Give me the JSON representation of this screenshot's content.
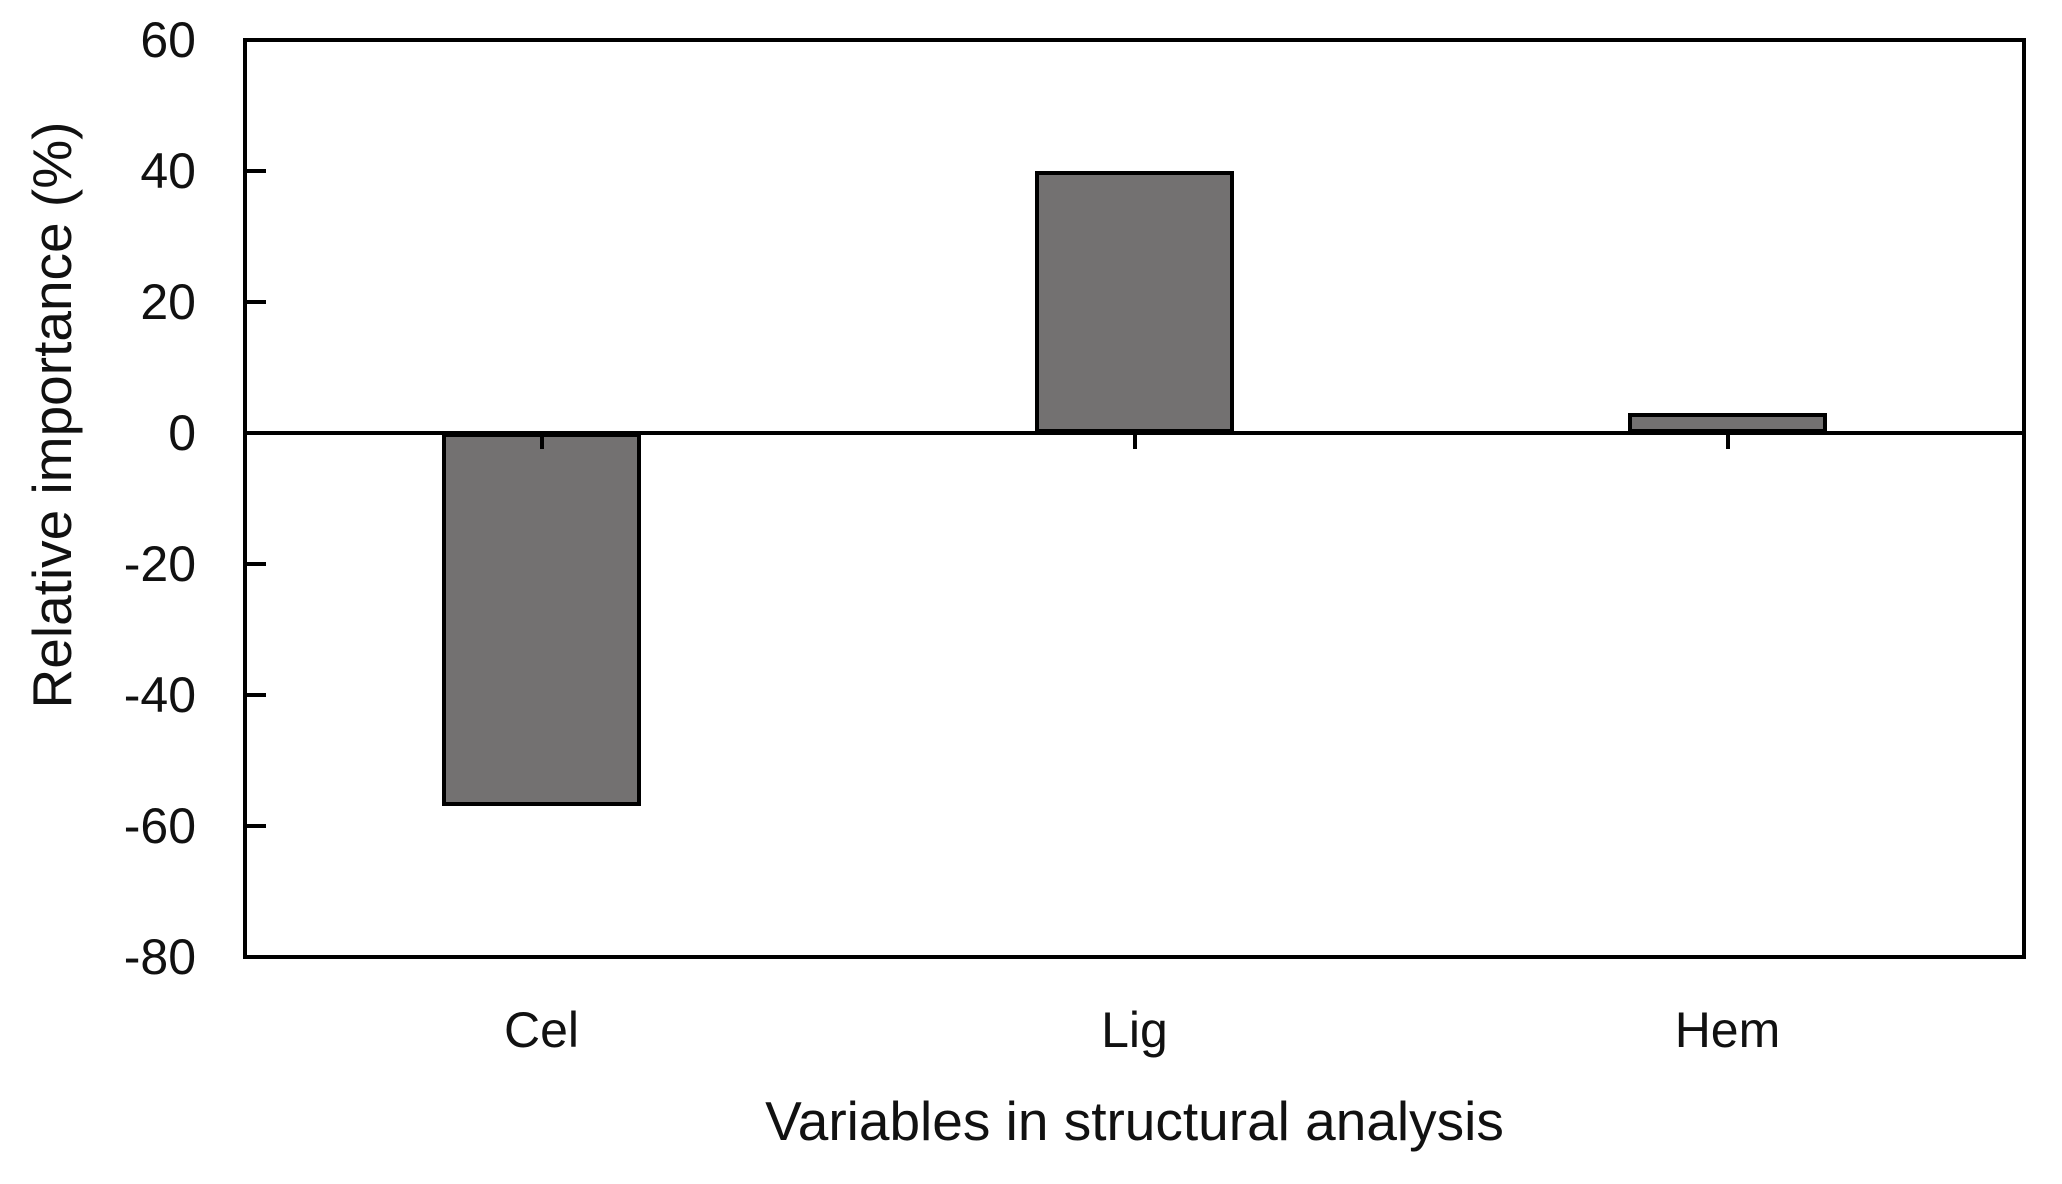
{
  "chart_data": {
    "type": "bar",
    "title": "",
    "categories": [
      "Cel",
      "Lig",
      "Hem"
    ],
    "values": [
      -57,
      40,
      3
    ],
    "xlabel": "Variables in structural analysis",
    "ylabel": "Relative importance (%)",
    "ylim": [
      -80,
      60
    ],
    "yticks": [
      60,
      40,
      20,
      0,
      -20,
      -40,
      -60,
      -80
    ],
    "ytick_interval": 20,
    "grid": false,
    "legend": null,
    "zero_baseline": true,
    "colors": {
      "bar_fill": "#737171",
      "bar_border": "#000000",
      "axis": "#000000",
      "text": "#111111",
      "background": "#ffffff"
    }
  }
}
